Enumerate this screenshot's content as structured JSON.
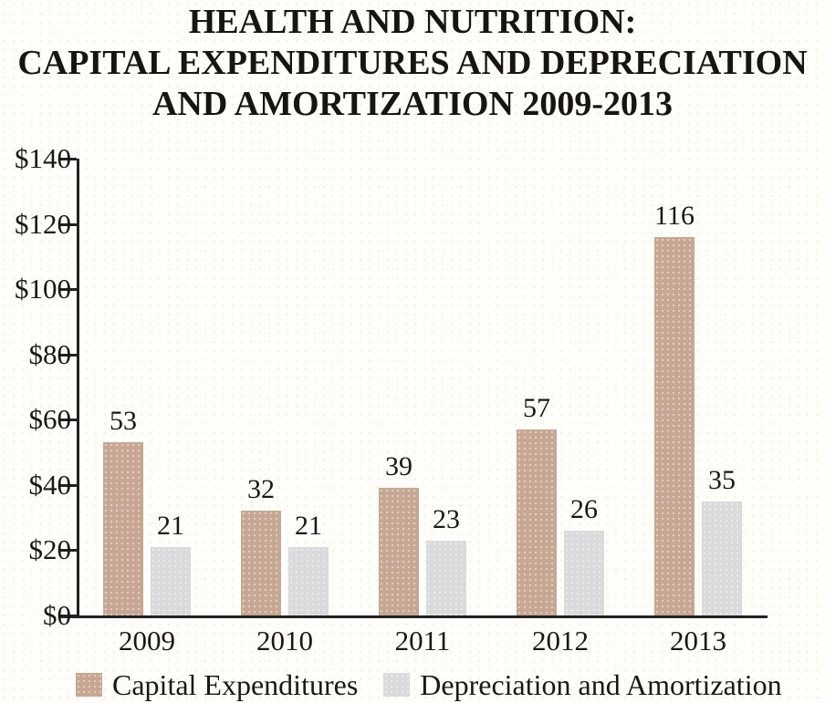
{
  "title": {
    "line1": "HEALTH AND NUTRITION:",
    "line2": "CAPITAL EXPENDITURES AND DEPRECIATION",
    "line3": "AND AMORTIZATION 2009-2013"
  },
  "chart_data": {
    "type": "bar",
    "title": "HEALTH AND NUTRITION: CAPITAL EXPENDITURES AND DEPRECIATION AND AMORTIZATION 2009-2013",
    "categories": [
      "2009",
      "2010",
      "2011",
      "2012",
      "2013"
    ],
    "series": [
      {
        "name": "Capital Expenditures",
        "color": "#c7a693",
        "values": [
          53,
          32,
          39,
          57,
          116
        ]
      },
      {
        "name": "Depreciation and Amortization",
        "color": "#d8dadc",
        "values": [
          21,
          21,
          23,
          26,
          35
        ]
      }
    ],
    "value_labels_shown": true,
    "ylim": [
      0,
      140
    ],
    "ytick_interval": 20,
    "ytick_labels": [
      "$0",
      "$20",
      "$40",
      "$60",
      "$80",
      "$100",
      "$120",
      "$140"
    ],
    "xlabel": "",
    "ylabel": "",
    "grid": false,
    "legend_position": "bottom"
  },
  "legend": {
    "items": [
      {
        "label": "Capital Expenditures",
        "color": "#c7a693"
      },
      {
        "label": "Depreciation and Amortization",
        "color": "#d8dadc"
      }
    ]
  },
  "colors": {
    "axis": "#222222",
    "text": "#1b1712",
    "background": "#fffefb"
  }
}
